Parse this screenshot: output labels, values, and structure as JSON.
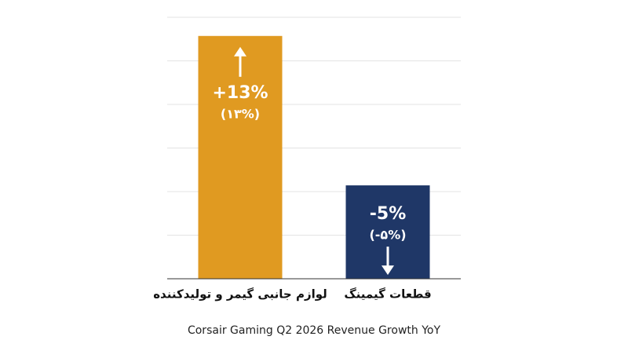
{
  "chart_data": {
    "type": "bar",
    "title": "Corsair Gaming Q2 2026 Revenue Growth YoY",
    "categories": [
      "لوازم جانبی گیمر و تولیدکننده",
      "قطعات گیمینگ"
    ],
    "values": [
      13,
      -5
    ],
    "value_labels": [
      "+13%",
      "-5%"
    ],
    "secondary_labels": [
      "(۱۳%)",
      "(-۵%)"
    ],
    "colors": [
      "#e09a21",
      "#1f3767"
    ],
    "ylim": [
      0,
      14
    ],
    "grid": true
  }
}
